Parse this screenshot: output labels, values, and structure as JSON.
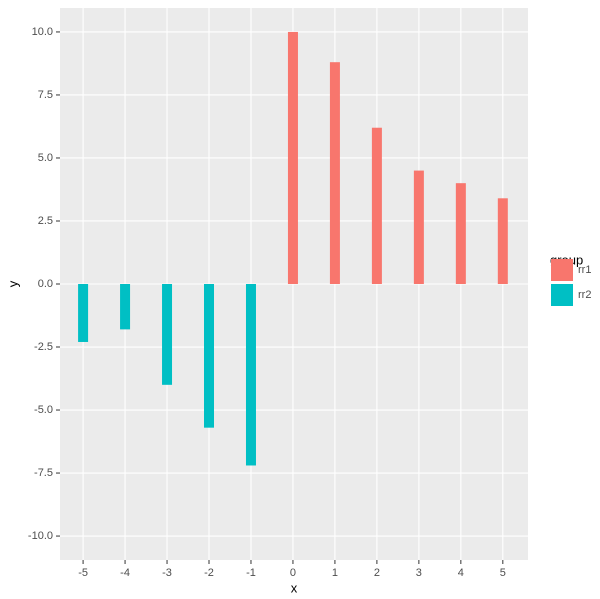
{
  "chart_data": {
    "type": "bar",
    "xlabel": "x",
    "ylabel": "y",
    "legend_title": "group",
    "legend_position": "right",
    "series": [
      {
        "name": "rr1",
        "color": "#f8766d",
        "x": [
          0,
          1,
          2,
          3,
          4,
          5
        ],
        "values": [
          10.0,
          8.8,
          6.2,
          4.5,
          4.0,
          3.4
        ]
      },
      {
        "name": "rr2",
        "color": "#00bfc4",
        "x": [
          -5,
          -4,
          -3,
          -2,
          -1
        ],
        "values": [
          -2.3,
          -1.8,
          -4.0,
          -5.7,
          -7.2
        ]
      }
    ],
    "xlim": [
      -5.55,
      5.6
    ],
    "xticks": [
      -5,
      -4,
      -3,
      -2,
      -1,
      0,
      1,
      2,
      3,
      4,
      5
    ],
    "ylim": [
      -10.95,
      10.95
    ],
    "yticks": [
      {
        "value": -10,
        "label": "-10.0"
      },
      {
        "value": -7.5,
        "label": "-7.5"
      },
      {
        "value": -5,
        "label": "-5.0"
      },
      {
        "value": -2.5,
        "label": "-2.5"
      },
      {
        "value": 0,
        "label": "0.0"
      },
      {
        "value": 2.5,
        "label": "2.5"
      },
      {
        "value": 5,
        "label": "5.0"
      },
      {
        "value": 7.5,
        "label": "7.5"
      },
      {
        "value": 10,
        "label": "10.0"
      }
    ],
    "grid": true
  }
}
